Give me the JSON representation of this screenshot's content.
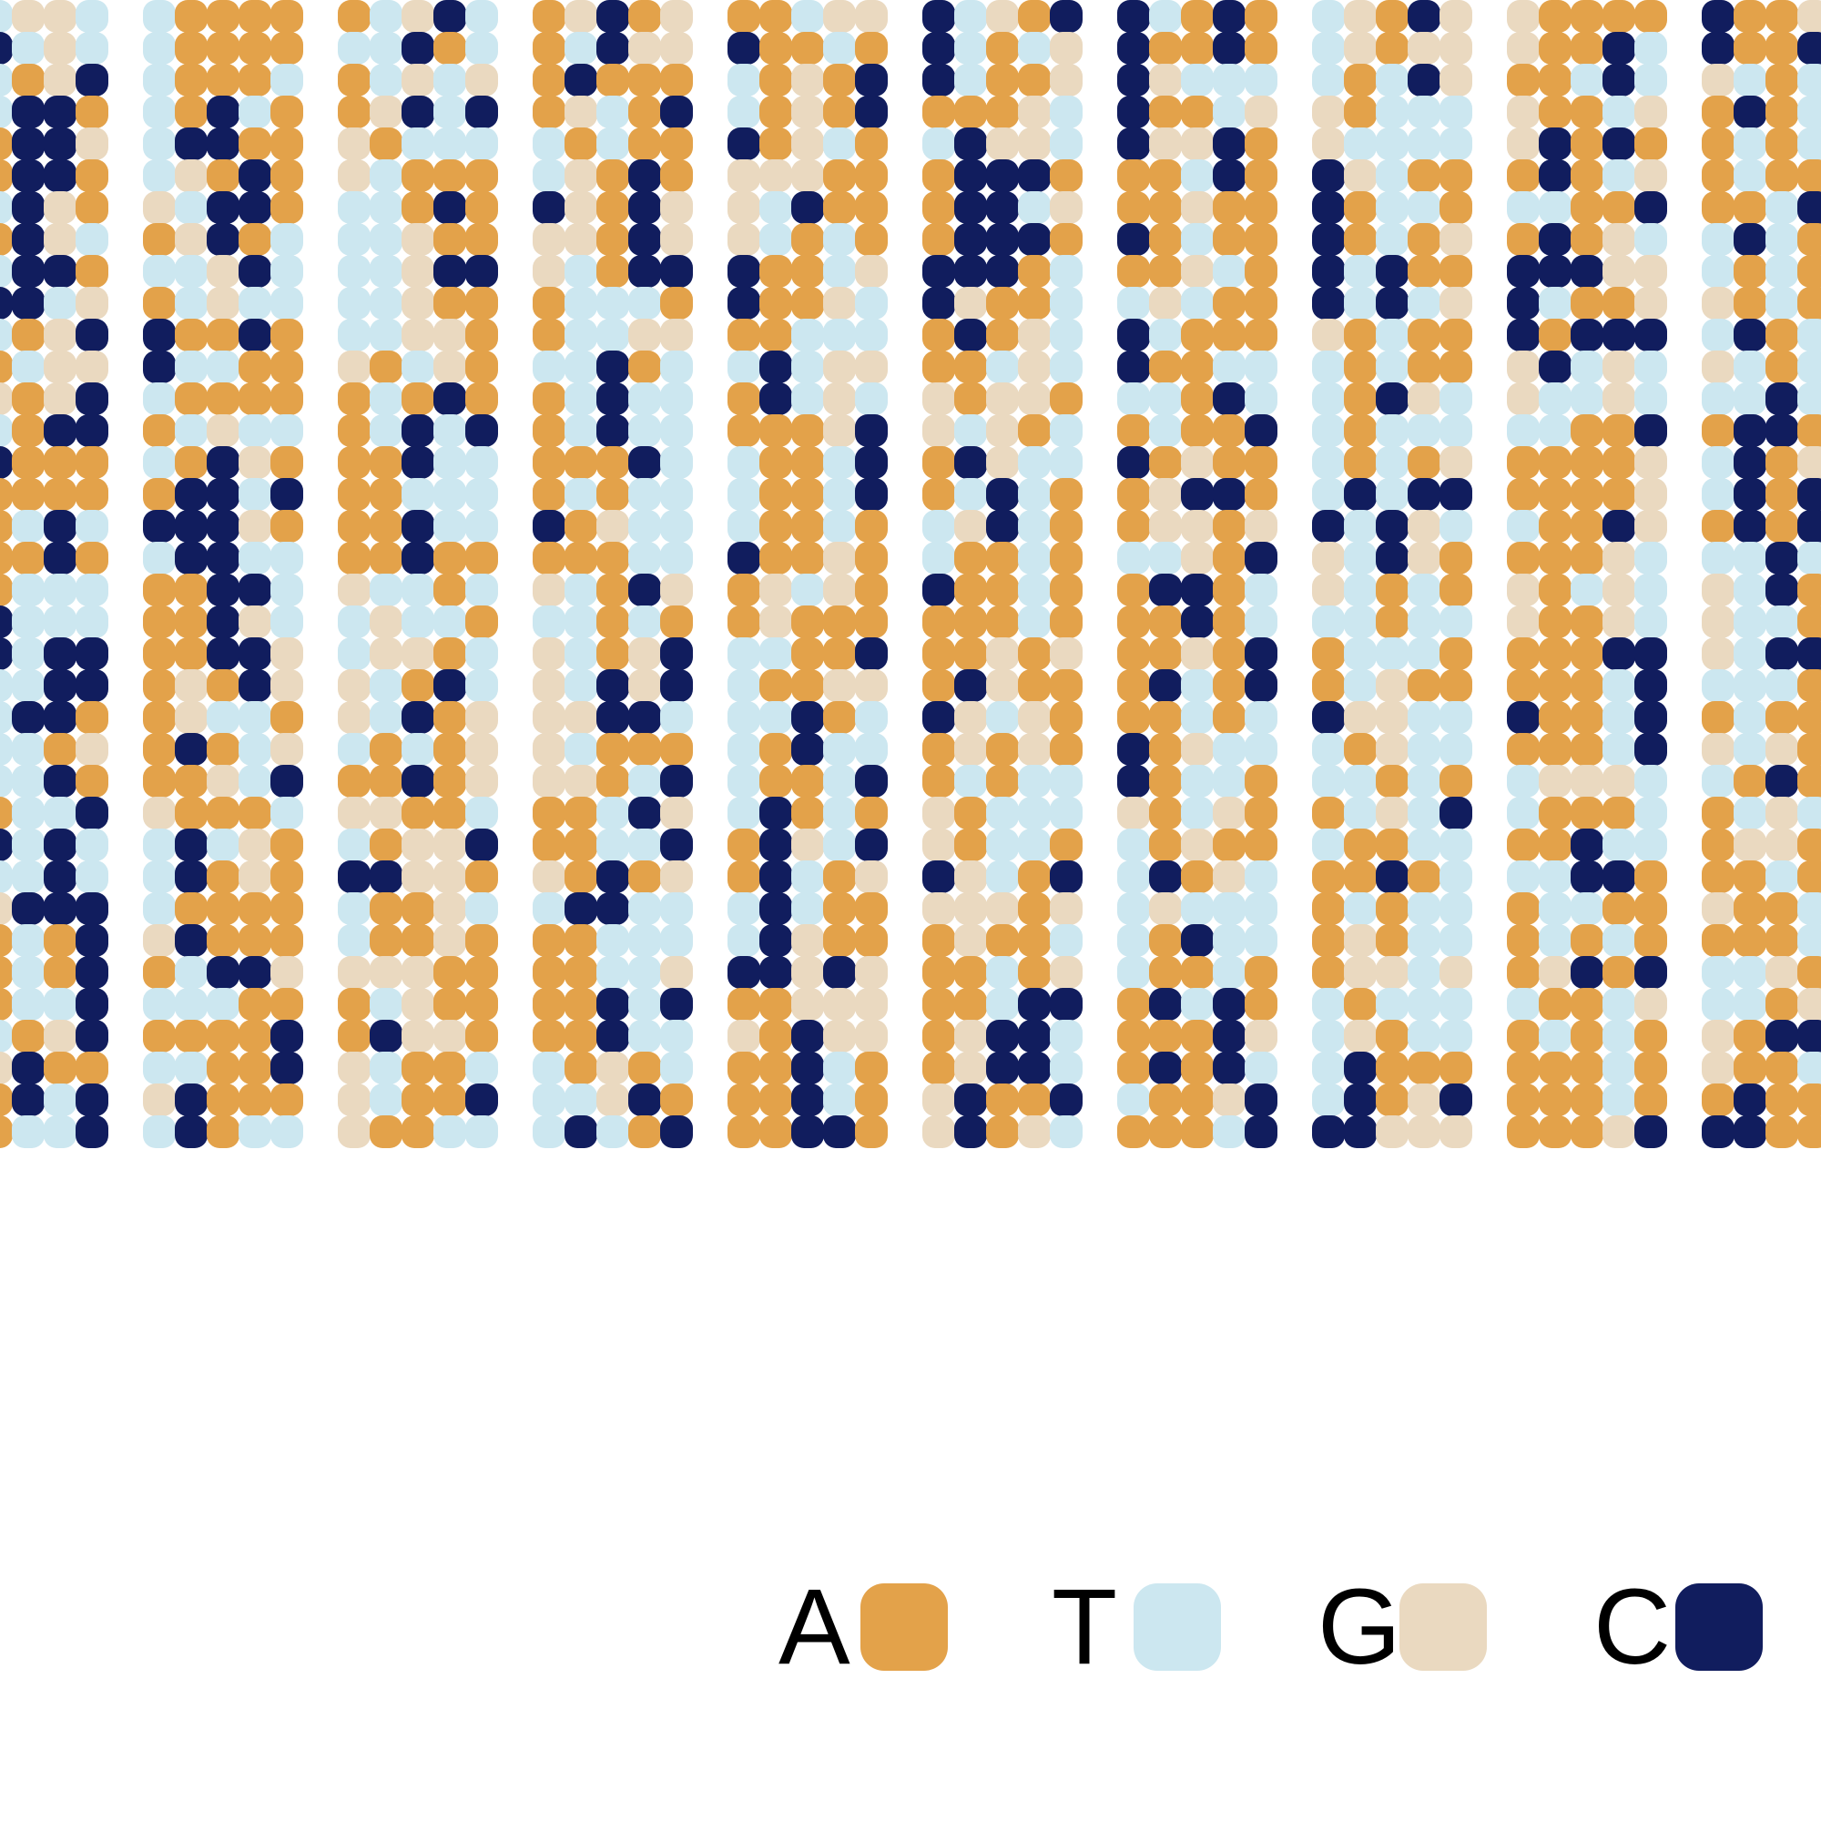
{
  "legend": {
    "items": [
      {
        "letter": "A",
        "color": "#E3A24A"
      },
      {
        "letter": "T",
        "color": "#CCE7F0"
      },
      {
        "letter": "G",
        "color": "#EAD9C0"
      },
      {
        "letter": "C",
        "color": "#111D5E"
      }
    ]
  },
  "background_color": "#FFFFFF"
}
